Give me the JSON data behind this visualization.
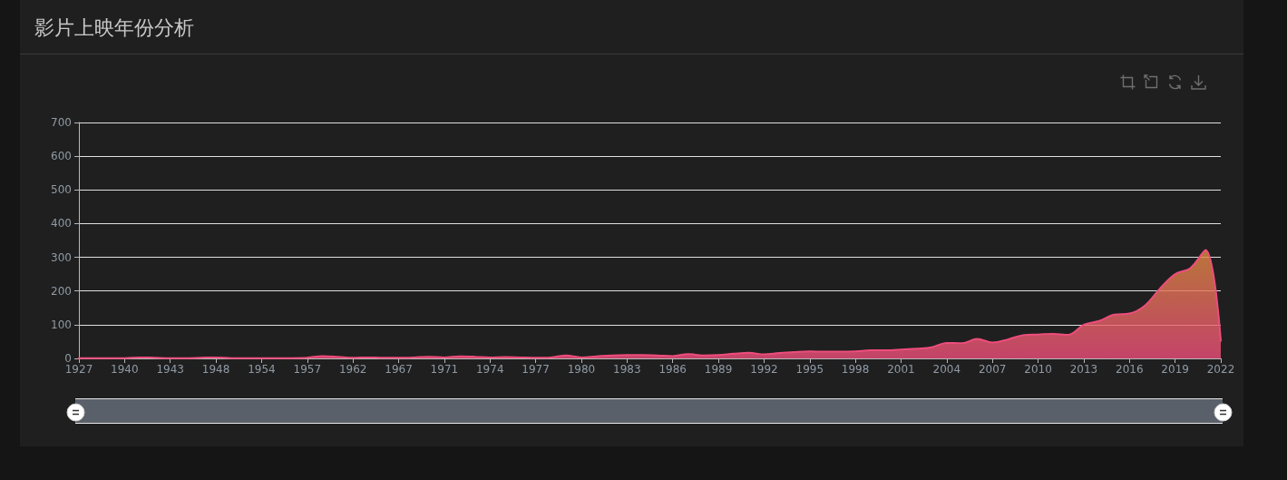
{
  "chart_data": {
    "type": "area",
    "title": "影片上映年份分析",
    "categories": [
      "1927",
      null,
      null,
      "1940",
      null,
      null,
      "1943",
      null,
      null,
      "1948",
      null,
      null,
      "1954",
      null,
      null,
      "1957",
      null,
      null,
      "1962",
      null,
      null,
      "1967",
      null,
      null,
      "1971",
      null,
      null,
      "1974",
      null,
      null,
      "1977",
      null,
      null,
      "1980",
      null,
      null,
      "1983",
      null,
      null,
      "1986",
      null,
      null,
      "1989",
      null,
      null,
      "1992",
      null,
      null,
      "1995",
      null,
      null,
      "1998",
      null,
      null,
      "2001",
      null,
      null,
      "2004",
      null,
      null,
      "2007",
      null,
      null,
      "2010",
      null,
      null,
      "2013",
      null,
      null,
      "2016",
      null,
      null,
      "2019",
      null,
      null,
      "2022"
    ],
    "values": [
      1,
      1,
      1,
      1,
      3,
      2,
      1,
      1,
      2,
      3,
      1,
      1,
      1,
      1,
      1,
      2,
      7,
      5,
      2,
      3,
      2,
      2,
      3,
      5,
      3,
      6,
      5,
      3,
      4,
      3,
      2,
      3,
      9,
      3,
      6,
      9,
      10,
      10,
      9,
      7,
      13,
      9,
      10,
      14,
      17,
      12,
      16,
      19,
      21,
      20,
      20,
      21,
      24,
      24,
      26,
      29,
      33,
      46,
      45,
      58,
      47,
      56,
      69,
      71,
      73,
      70,
      100,
      111,
      130,
      133,
      156,
      207,
      250,
      268,
      322,
      52
    ],
    "color": "#ee4d7c",
    "ylim": [
      0,
      700
    ],
    "yticks": [
      0,
      100,
      200,
      300,
      400,
      500,
      600,
      700
    ],
    "grid": "y",
    "marker": "none"
  }
}
